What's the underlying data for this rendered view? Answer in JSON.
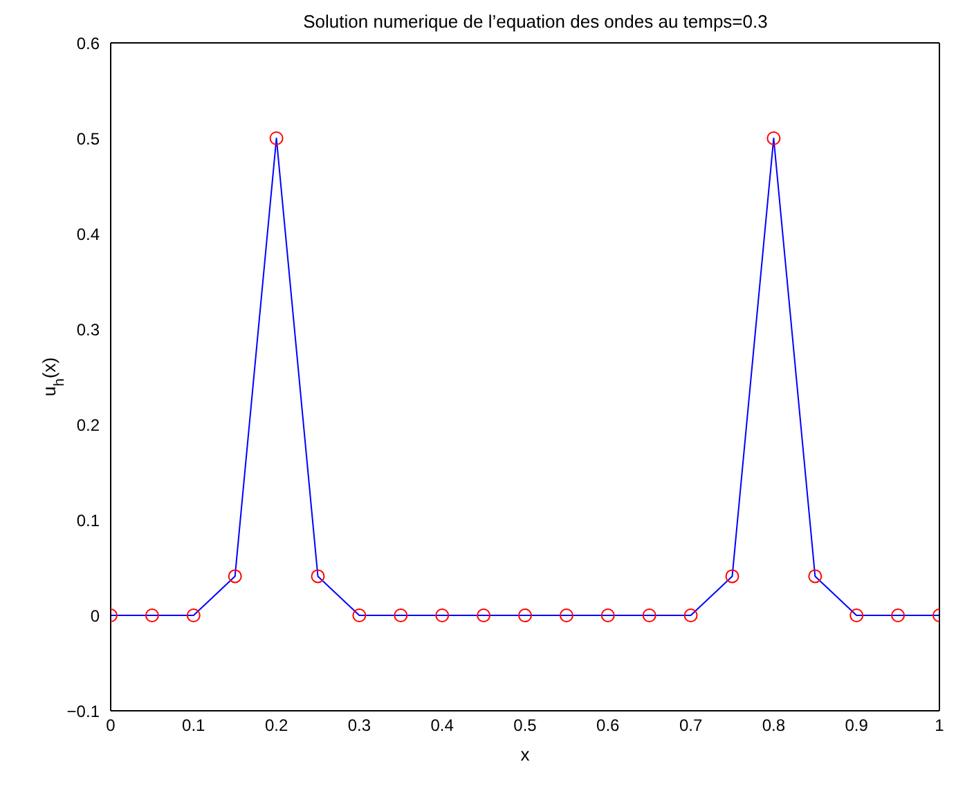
{
  "chart_data": {
    "type": "line",
    "title": "Solution numerique de l’equation des ondes au temps=0.3",
    "xlabel": "x",
    "ylabel": "u$_{h}$(x)",
    "x": [
      0,
      0.05,
      0.1,
      0.15,
      0.2,
      0.25,
      0.3,
      0.35,
      0.4,
      0.45,
      0.5,
      0.55,
      0.6,
      0.65,
      0.7,
      0.75,
      0.8,
      0.85,
      0.9,
      0.95,
      1
    ],
    "series": [
      {
        "type": "line",
        "color": "#0000ff",
        "marker": "none",
        "values": [
          0,
          0,
          0,
          0.041,
          0.5,
          0.041,
          0,
          0,
          0,
          0,
          0,
          0,
          0,
          0,
          0,
          0.041,
          0.5,
          0.041,
          0,
          0,
          0
        ]
      },
      {
        "type": "scatter",
        "color": "#ff0000",
        "marker": "circle",
        "values": [
          0,
          0,
          0,
          0.041,
          0.5,
          0.041,
          0,
          0,
          0,
          0,
          0,
          0,
          0,
          0,
          0,
          0.041,
          0.5,
          0.041,
          0,
          0,
          0
        ]
      }
    ],
    "xlim": [
      0,
      1
    ],
    "xticks": [
      0,
      0.1,
      0.2,
      0.3,
      0.4,
      0.5,
      0.6,
      0.7,
      0.8,
      0.9,
      1
    ],
    "ylim": [
      -0.1,
      0.6
    ],
    "yticks": [
      {
        "value": -0.1,
        "label": "−0.1"
      },
      0,
      0.1,
      0.2,
      0.3,
      0.4,
      0.5,
      0.6
    ],
    "grid": false,
    "legend": false
  }
}
